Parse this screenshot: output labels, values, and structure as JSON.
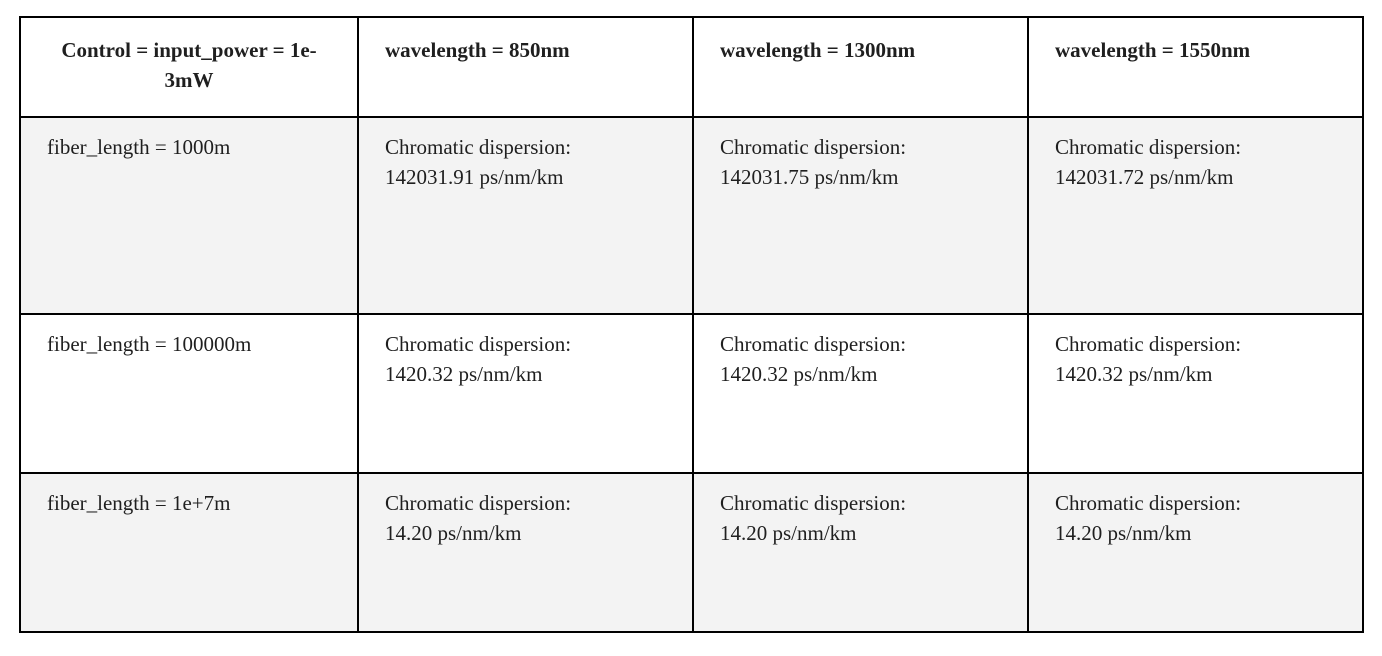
{
  "table": {
    "header": {
      "corner": "Control = input_power = 1e-3mW",
      "columns": [
        "wavelength = 850nm",
        "wavelength = 1300nm",
        "wavelength = 1550nm"
      ]
    },
    "rows": [
      {
        "label": "fiber_length = 1000m",
        "cells": [
          {
            "prefix": "Chromatic dispersion:",
            "value": "142031.91 ps/nm/km"
          },
          {
            "prefix": "Chromatic dispersion:",
            "value": "142031.75 ps/nm/km"
          },
          {
            "prefix": "Chromatic dispersion:",
            "value": "142031.72 ps/nm/km"
          }
        ]
      },
      {
        "label": "fiber_length = 100000m",
        "cells": [
          {
            "prefix": "Chromatic dispersion:",
            "value": "1420.32 ps/nm/km"
          },
          {
            "prefix": "Chromatic dispersion:",
            "value": "1420.32 ps/nm/km"
          },
          {
            "prefix": "Chromatic dispersion:",
            "value": "1420.32 ps/nm/km"
          }
        ]
      },
      {
        "label": "fiber_length = 1e+7m",
        "cells": [
          {
            "prefix": "Chromatic dispersion:",
            "value": "14.20 ps/nm/km"
          },
          {
            "prefix": "Chromatic dispersion:",
            "value": "14.20 ps/nm/km"
          },
          {
            "prefix": "Chromatic dispersion:",
            "value": "14.20 ps/nm/km"
          }
        ]
      }
    ]
  }
}
